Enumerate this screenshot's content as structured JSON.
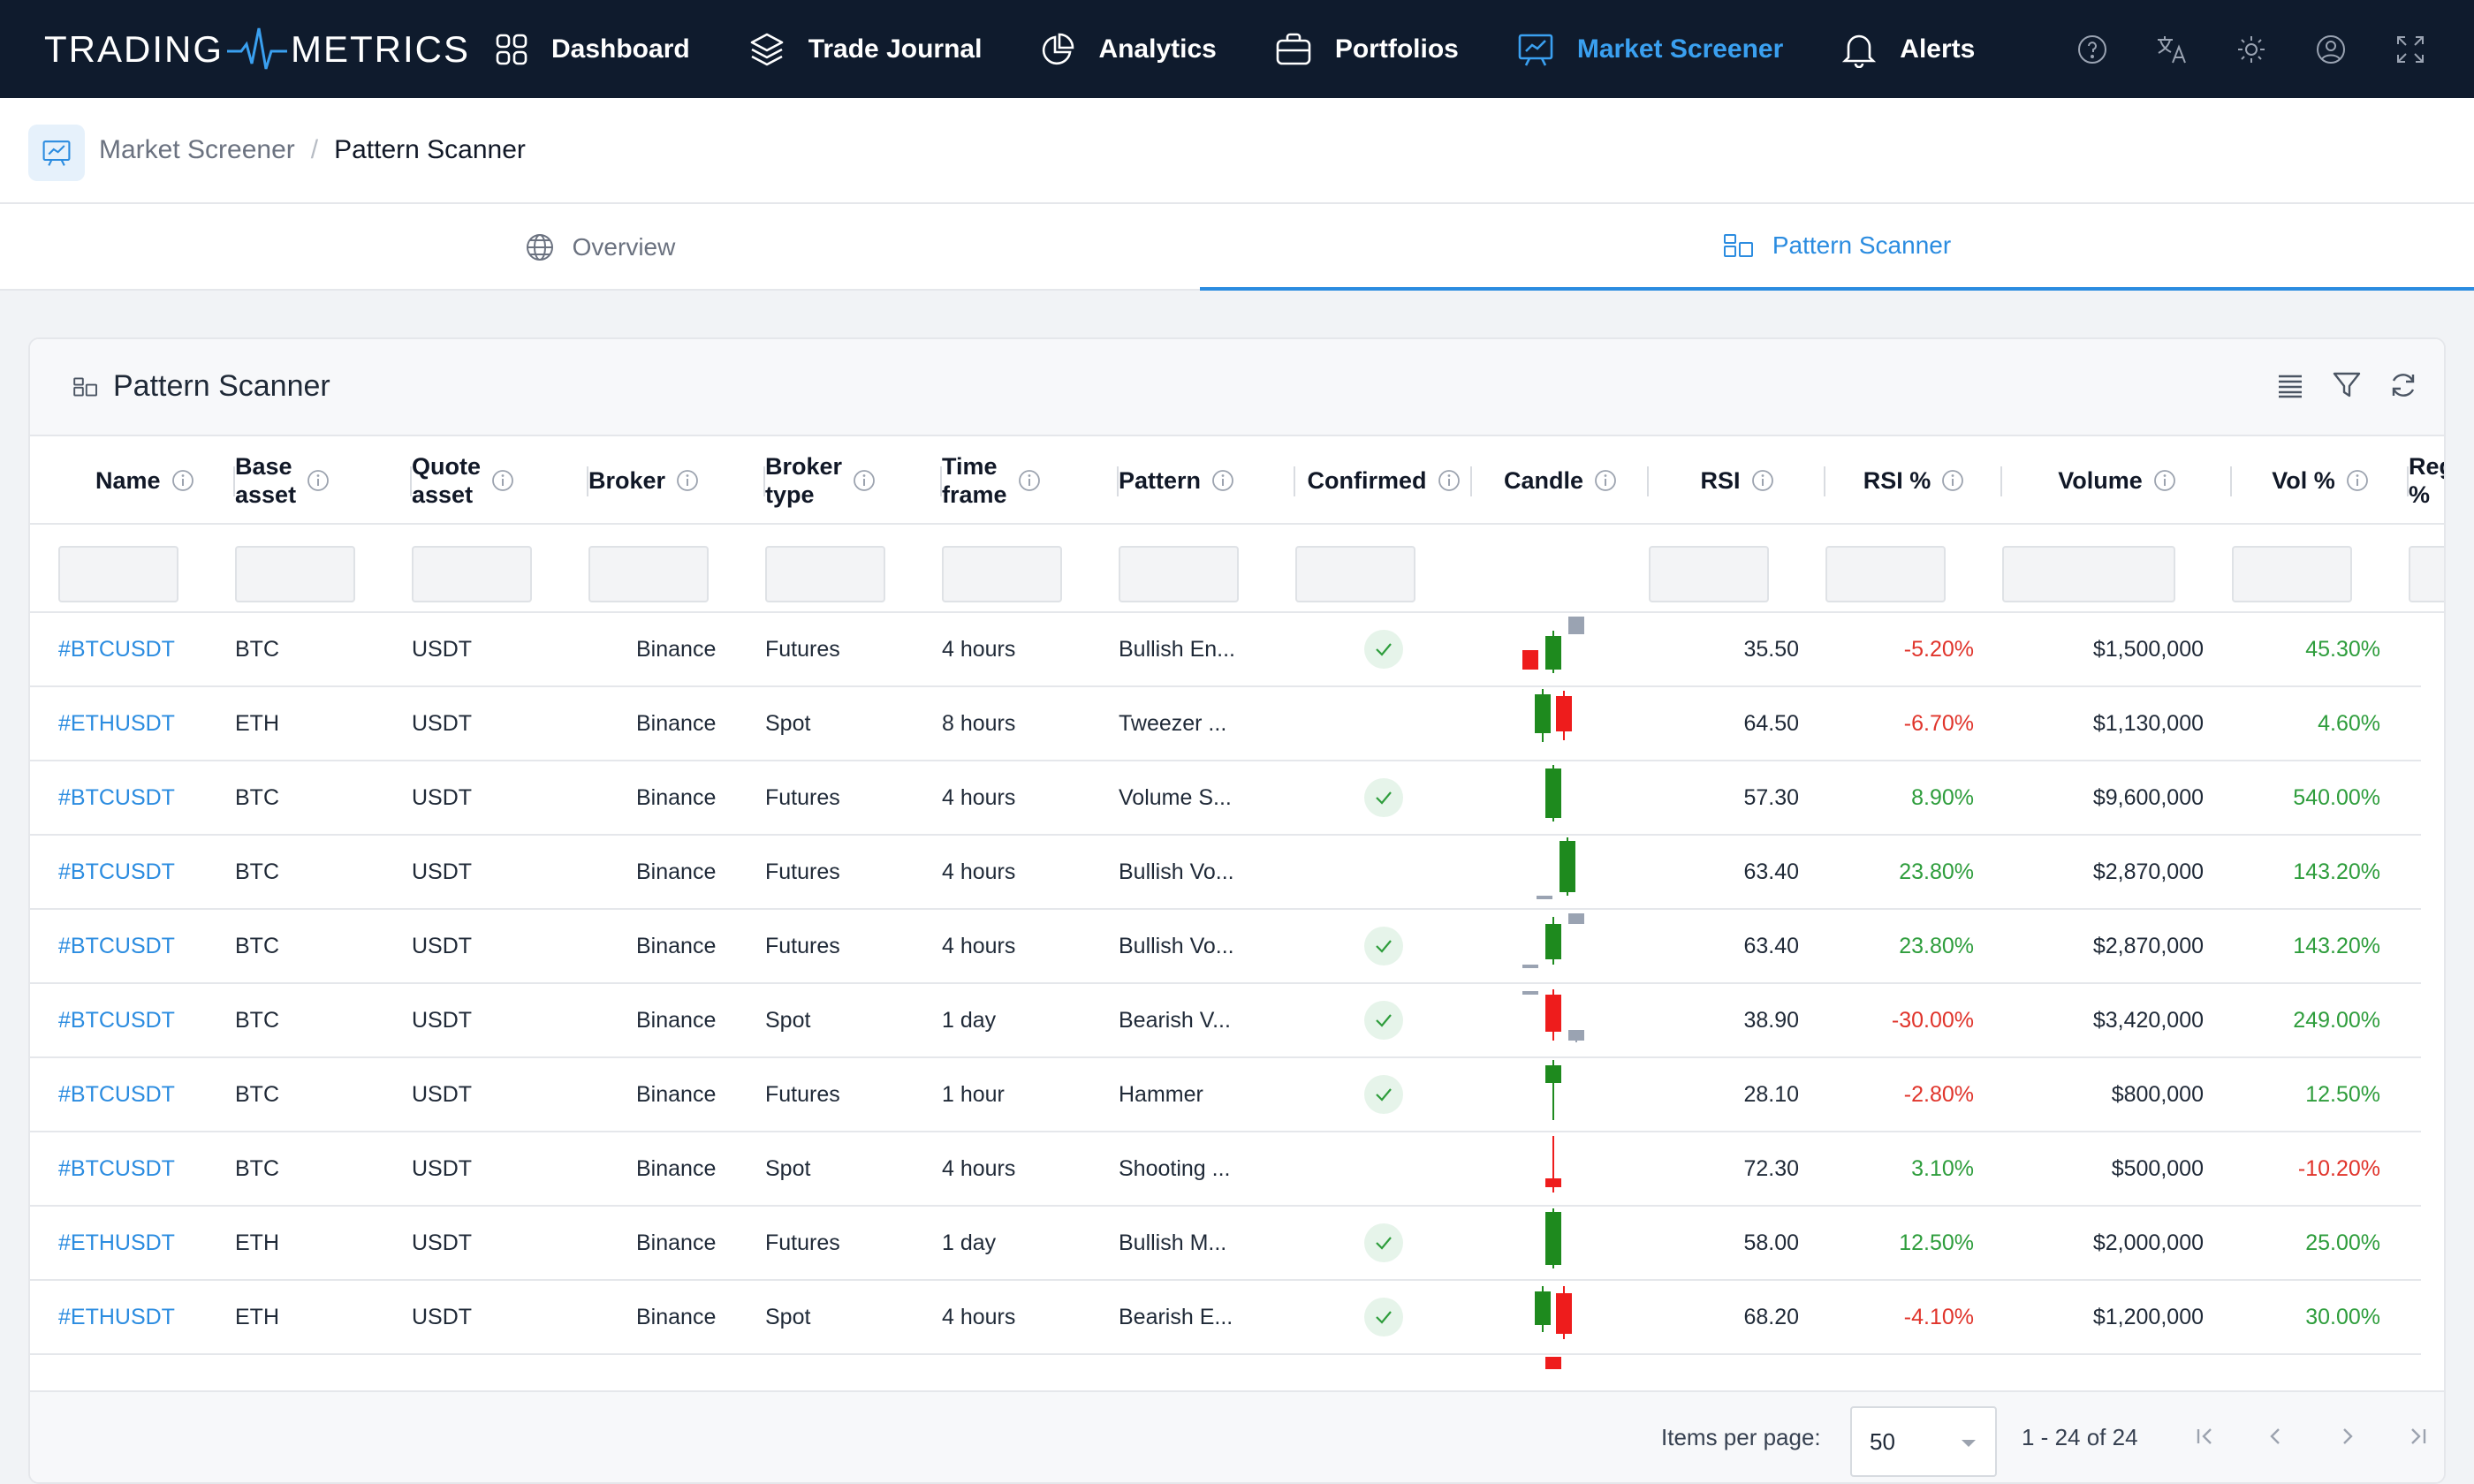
{
  "app": {
    "brand_left": "TRADING",
    "brand_right": "METRICS"
  },
  "nav": {
    "items": [
      {
        "label": "Dashboard",
        "icon": "grid-icon"
      },
      {
        "label": "Trade Journal",
        "icon": "layers-icon"
      },
      {
        "label": "Analytics",
        "icon": "pie-chart-icon"
      },
      {
        "label": "Portfolios",
        "icon": "briefcase-icon"
      },
      {
        "label": "Market Screener",
        "icon": "presentation-chart-icon",
        "active": true
      },
      {
        "label": "Alerts",
        "icon": "bell-icon"
      }
    ],
    "right_icons": [
      "help-icon",
      "translate-icon",
      "theme-sun-icon",
      "user-icon",
      "fullscreen-icon"
    ]
  },
  "breadcrumb": {
    "parent": "Market Screener",
    "separator": "/",
    "current": "Pattern Scanner"
  },
  "tabs": [
    {
      "label": "Overview",
      "icon": "globe-icon"
    },
    {
      "label": "Pattern Scanner",
      "icon": "pattern-icon",
      "active": true
    }
  ],
  "card": {
    "title": "Pattern Scanner",
    "tools": [
      "columns-icon",
      "filter-icon",
      "refresh-icon"
    ]
  },
  "table": {
    "columns": [
      {
        "label": "Name"
      },
      {
        "label": "Base\nasset"
      },
      {
        "label": "Quote\nasset"
      },
      {
        "label": "Broker"
      },
      {
        "label": "Broker\ntype"
      },
      {
        "label": "Time\nframe"
      },
      {
        "label": "Pattern"
      },
      {
        "label": "Confirmed"
      },
      {
        "label": "Candle"
      },
      {
        "label": "RSI"
      },
      {
        "label": "RSI %"
      },
      {
        "label": "Volume"
      },
      {
        "label": "Vol %"
      },
      {
        "label": "Reg\n%"
      }
    ],
    "rows": [
      {
        "name": "#BTCUSDT",
        "base": "BTC",
        "quote": "USDT",
        "broker": "Binance",
        "broker_type": "Futures",
        "timeframe": "4 hours",
        "pattern": "Bullish En...",
        "confirmed": true,
        "rsi": "35.50",
        "rsi_pct": "-5.20%",
        "volume": "$1,500,000",
        "vol_pct": "45.30%"
      },
      {
        "name": "#ETHUSDT",
        "base": "ETH",
        "quote": "USDT",
        "broker": "Binance",
        "broker_type": "Spot",
        "timeframe": "8 hours",
        "pattern": "Tweezer ...",
        "confirmed": false,
        "rsi": "64.50",
        "rsi_pct": "-6.70%",
        "volume": "$1,130,000",
        "vol_pct": "4.60%"
      },
      {
        "name": "#BTCUSDT",
        "base": "BTC",
        "quote": "USDT",
        "broker": "Binance",
        "broker_type": "Futures",
        "timeframe": "4 hours",
        "pattern": "Volume S...",
        "confirmed": true,
        "rsi": "57.30",
        "rsi_pct": "8.90%",
        "volume": "$9,600,000",
        "vol_pct": "540.00%"
      },
      {
        "name": "#BTCUSDT",
        "base": "BTC",
        "quote": "USDT",
        "broker": "Binance",
        "broker_type": "Futures",
        "timeframe": "4 hours",
        "pattern": "Bullish Vo...",
        "confirmed": false,
        "rsi": "63.40",
        "rsi_pct": "23.80%",
        "volume": "$2,870,000",
        "vol_pct": "143.20%"
      },
      {
        "name": "#BTCUSDT",
        "base": "BTC",
        "quote": "USDT",
        "broker": "Binance",
        "broker_type": "Futures",
        "timeframe": "4 hours",
        "pattern": "Bullish Vo...",
        "confirmed": true,
        "rsi": "63.40",
        "rsi_pct": "23.80%",
        "volume": "$2,870,000",
        "vol_pct": "143.20%"
      },
      {
        "name": "#BTCUSDT",
        "base": "BTC",
        "quote": "USDT",
        "broker": "Binance",
        "broker_type": "Spot",
        "timeframe": "1 day",
        "pattern": "Bearish V...",
        "confirmed": true,
        "rsi": "38.90",
        "rsi_pct": "-30.00%",
        "volume": "$3,420,000",
        "vol_pct": "249.00%"
      },
      {
        "name": "#BTCUSDT",
        "base": "BTC",
        "quote": "USDT",
        "broker": "Binance",
        "broker_type": "Futures",
        "timeframe": "1 hour",
        "pattern": "Hammer",
        "confirmed": true,
        "rsi": "28.10",
        "rsi_pct": "-2.80%",
        "volume": "$800,000",
        "vol_pct": "12.50%"
      },
      {
        "name": "#BTCUSDT",
        "base": "BTC",
        "quote": "USDT",
        "broker": "Binance",
        "broker_type": "Spot",
        "timeframe": "4 hours",
        "pattern": "Shooting ...",
        "confirmed": false,
        "rsi": "72.30",
        "rsi_pct": "3.10%",
        "volume": "$500,000",
        "vol_pct": "-10.20%"
      },
      {
        "name": "#ETHUSDT",
        "base": "ETH",
        "quote": "USDT",
        "broker": "Binance",
        "broker_type": "Futures",
        "timeframe": "1 day",
        "pattern": "Bullish M...",
        "confirmed": true,
        "rsi": "58.00",
        "rsi_pct": "12.50%",
        "volume": "$2,000,000",
        "vol_pct": "25.00%"
      },
      {
        "name": "#ETHUSDT",
        "base": "ETH",
        "quote": "USDT",
        "broker": "Binance",
        "broker_type": "Spot",
        "timeframe": "4 hours",
        "pattern": "Bearish E...",
        "confirmed": true,
        "rsi": "68.20",
        "rsi_pct": "-4.10%",
        "volume": "$1,200,000",
        "vol_pct": "30.00%"
      }
    ]
  },
  "pagination": {
    "items_per_page_label": "Items per page:",
    "items_per_page": "50",
    "range": "1 - 24 of 24"
  },
  "colors": {
    "nav_bg": "#0f1b2d",
    "accent": "#2b8ce0",
    "positive": "#2e9d3c",
    "negative": "#e0342b",
    "bull_candle": "#1e8a1e",
    "bear_candle": "#ee1c1c"
  }
}
